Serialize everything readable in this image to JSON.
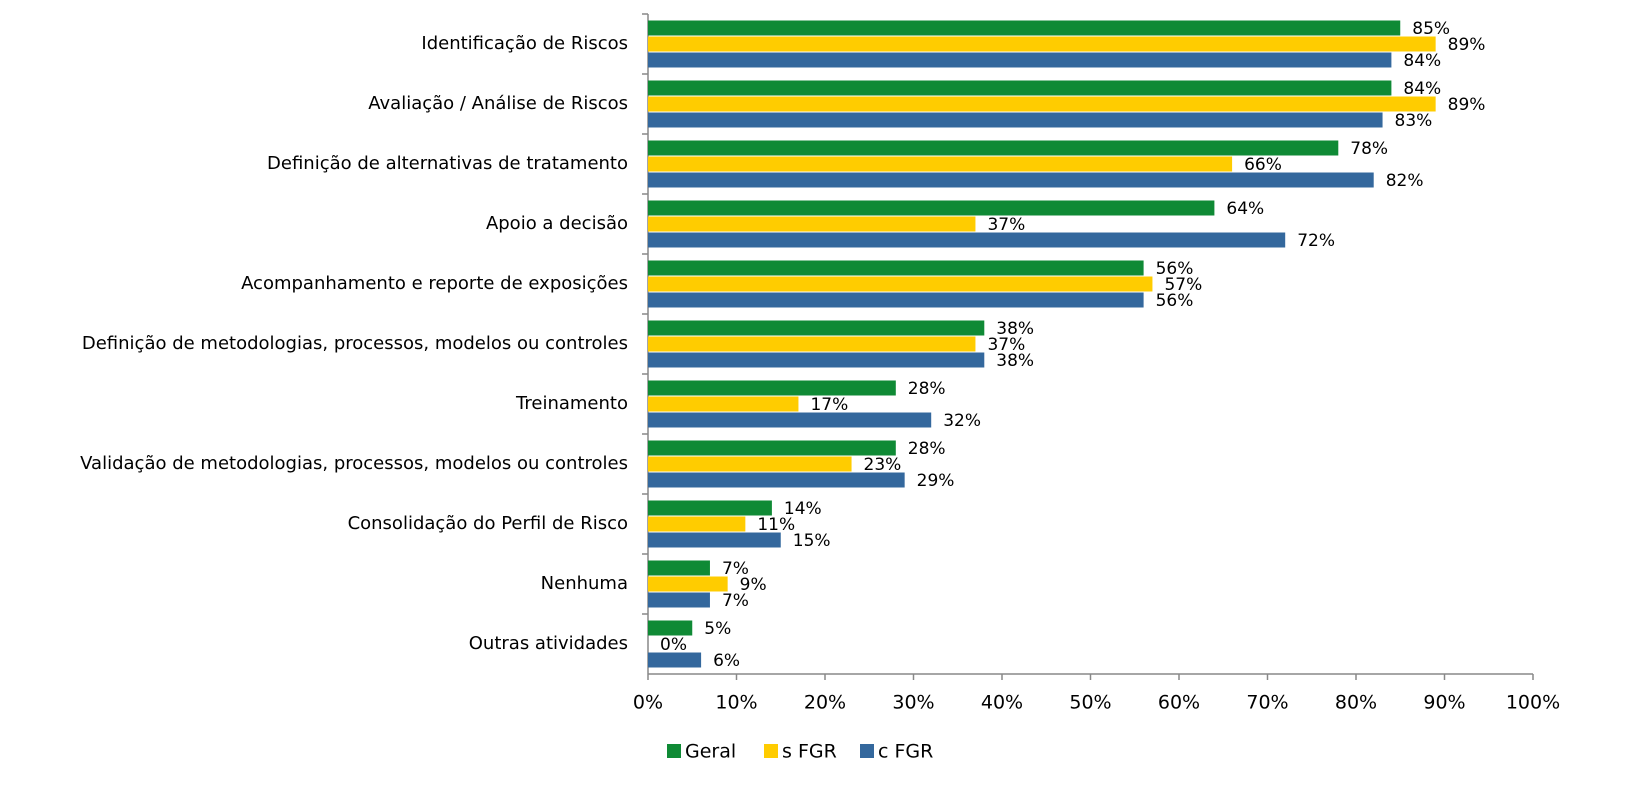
{
  "chart_data": {
    "type": "barh",
    "categories": [
      "Identificação de Riscos",
      "Avaliação / Análise de Riscos",
      "Definição de alternativas de tratamento",
      "Apoio a decisão",
      "Acompanhamento e reporte de exposições",
      "Definição de metodologias, processos, modelos ou controles",
      "Treinamento",
      "Validação de metodologias, processos, modelos ou controles",
      "Consolidação do Perfil de Risco",
      "Nenhuma",
      "Outras atividades"
    ],
    "series": [
      {
        "name": "Geral",
        "color": "#0f8a35",
        "values": [
          85,
          84,
          78,
          64,
          56,
          38,
          28,
          28,
          14,
          7,
          5
        ],
        "value_labels": [
          "85%",
          "84%",
          "78%",
          "64%",
          "56%",
          "38%",
          "28%",
          "28%",
          "14%",
          "7%",
          "5%"
        ]
      },
      {
        "name": "s FGR",
        "color": "#ffcc00",
        "values": [
          89,
          89,
          66,
          37,
          57,
          37,
          17,
          23,
          11,
          9,
          0
        ],
        "value_labels": [
          "89%",
          "89%",
          "66%",
          "37%",
          "57%",
          "37%",
          "17%",
          "23%",
          "11%",
          "9%",
          "0%"
        ]
      },
      {
        "name": "c FGR",
        "color": "#34689d",
        "values": [
          84,
          83,
          82,
          72,
          56,
          38,
          32,
          29,
          15,
          7,
          6
        ],
        "value_labels": [
          "84%",
          "83%",
          "82%",
          "72%",
          "56%",
          "38%",
          "32%",
          "29%",
          "15%",
          "7%",
          "6%"
        ]
      }
    ],
    "xlim": [
      0,
      100
    ],
    "xticks": [
      {
        "value": 0,
        "label": "0%"
      },
      {
        "value": 10,
        "label": "10%"
      },
      {
        "value": 20,
        "label": "20%"
      },
      {
        "value": 30,
        "label": "30%"
      },
      {
        "value": 40,
        "label": "40%"
      },
      {
        "value": 50,
        "label": "50%"
      },
      {
        "value": 60,
        "label": "60%"
      },
      {
        "value": 70,
        "label": "70%"
      },
      {
        "value": 80,
        "label": "80%"
      },
      {
        "value": 90,
        "label": "90%"
      },
      {
        "value": 100,
        "label": "100%"
      }
    ],
    "legend": "bottom"
  }
}
